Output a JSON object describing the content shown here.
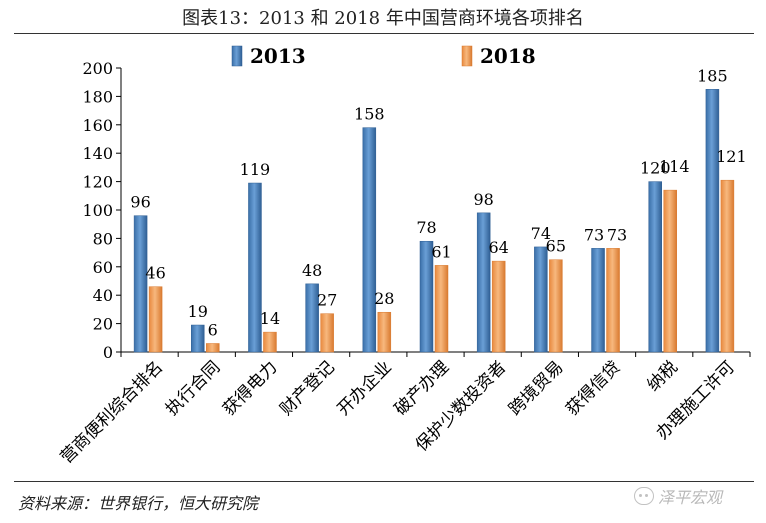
{
  "title": "图表13：2013 和 2018 年中国营商环境各项排名",
  "source": "资料来源：世界银行，恒大研究院",
  "watermark": "泽平宏观",
  "colors": {
    "series_2013": "#4f86c0",
    "series_2018": "#f2a05c",
    "axis": "#000000"
  },
  "chart_data": {
    "type": "bar",
    "title": "图表13：2013 和 2018 年中国营商环境各项排名",
    "xlabel": "",
    "ylabel": "",
    "ylim": [
      0,
      200
    ],
    "yticks": [
      "0",
      "20",
      "40",
      "60",
      "80",
      "100",
      "120",
      "140",
      "160",
      "180",
      "200"
    ],
    "legend_position": "top",
    "grid": false,
    "categories": [
      "营商便利综合排名",
      "执行合同",
      "获得电力",
      "财产登记",
      "开办企业",
      "破产办理",
      "保护少数投资者",
      "跨境贸易",
      "获得信贷",
      "纳税",
      "办理施工许可"
    ],
    "series": [
      {
        "name": "2013",
        "values": [
          96,
          19,
          119,
          48,
          158,
          78,
          98,
          74,
          73,
          120,
          185
        ]
      },
      {
        "name": "2018",
        "values": [
          46,
          6,
          14,
          27,
          28,
          61,
          64,
          65,
          73,
          114,
          121
        ]
      }
    ]
  }
}
